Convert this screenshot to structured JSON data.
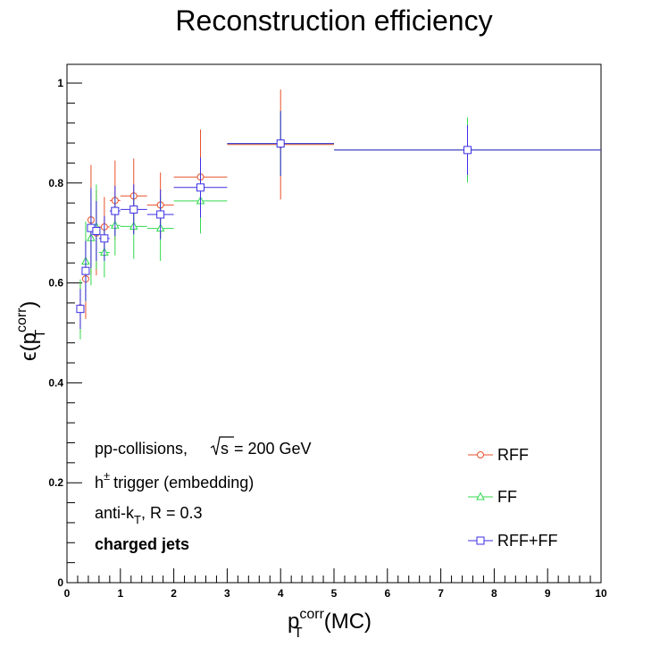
{
  "chart_data": {
    "type": "scatter",
    "title": "Reconstruction efficiency",
    "xlabel": {
      "base": "p",
      "sup": "corr",
      "sub": "T",
      "suffix": "(MC)"
    },
    "ylabel": {
      "prefix": "ϵ(p",
      "sup": "corr",
      "sub": "T",
      "suffix": ")"
    },
    "xlim": [
      0,
      10
    ],
    "ylim": [
      0,
      1.0375
    ],
    "x_ticks": [
      "0",
      "1",
      "2",
      "3",
      "4",
      "5",
      "6",
      "7",
      "8",
      "9",
      "10"
    ],
    "y_ticks": [
      "0",
      "0.2",
      "0.4",
      "0.6",
      "0.8",
      "1"
    ],
    "grid": false,
    "legend_position": "bottom-right",
    "annotations": {
      "line1_prefix": "pp-collisions,",
      "line1_sqrt_arg": "s",
      "line1_suffix": "= 200 GeV",
      "line2_prefix": "h",
      "line2_sup": "±",
      "line2_suffix": "trigger (embedding)",
      "line3_prefix": "anti-k",
      "line3_sub": "T",
      "line3_suffix": ", R = 0.3",
      "line4": "charged jets"
    },
    "series": [
      {
        "name": "RFF",
        "color": "#e8502a",
        "marker": "circle",
        "points": [
          {
            "x": 0.25,
            "y": 0.55,
            "xerr": 0.05,
            "yerr": 0.05
          },
          {
            "x": 0.35,
            "y": 0.608,
            "xerr": 0.05,
            "yerr": 0.08
          },
          {
            "x": 0.45,
            "y": 0.726,
            "xerr": 0.05,
            "yerr": 0.11
          },
          {
            "x": 0.55,
            "y": 0.7,
            "xerr": 0.05,
            "yerr": 0.085
          },
          {
            "x": 0.7,
            "y": 0.712,
            "xerr": 0.1,
            "yerr": 0.06
          },
          {
            "x": 0.9,
            "y": 0.765,
            "xerr": 0.1,
            "yerr": 0.08
          },
          {
            "x": 1.25,
            "y": 0.774,
            "xerr": 0.25,
            "yerr": 0.075
          },
          {
            "x": 1.75,
            "y": 0.756,
            "xerr": 0.25,
            "yerr": 0.065
          },
          {
            "x": 2.5,
            "y": 0.812,
            "xerr": 0.5,
            "yerr": 0.095
          },
          {
            "x": 4.0,
            "y": 0.877,
            "xerr": 1.0,
            "yerr": 0.11
          },
          {
            "x": 7.5,
            "y": 0.866,
            "xerr": 2.5,
            "yerr": 0.04
          }
        ]
      },
      {
        "name": "FF",
        "color": "#33d94e",
        "marker": "triangle",
        "points": [
          {
            "x": 0.25,
            "y": 0.547,
            "xerr": 0.05,
            "yerr": 0.06
          },
          {
            "x": 0.35,
            "y": 0.643,
            "xerr": 0.05,
            "yerr": 0.08
          },
          {
            "x": 0.45,
            "y": 0.69,
            "xerr": 0.05,
            "yerr": 0.095
          },
          {
            "x": 0.55,
            "y": 0.712,
            "xerr": 0.05,
            "yerr": 0.085
          },
          {
            "x": 0.7,
            "y": 0.661,
            "xerr": 0.1,
            "yerr": 0.05
          },
          {
            "x": 0.9,
            "y": 0.715,
            "xerr": 0.1,
            "yerr": 0.06
          },
          {
            "x": 1.25,
            "y": 0.713,
            "xerr": 0.25,
            "yerr": 0.065
          },
          {
            "x": 1.75,
            "y": 0.709,
            "xerr": 0.25,
            "yerr": 0.065
          },
          {
            "x": 2.5,
            "y": 0.764,
            "xerr": 0.5,
            "yerr": 0.065
          },
          {
            "x": 4.0,
            "y": 0.879,
            "xerr": 1.0,
            "yerr": 0.065
          },
          {
            "x": 7.5,
            "y": 0.866,
            "xerr": 2.5,
            "yerr": 0.065
          }
        ]
      },
      {
        "name": "RFF+FF",
        "color": "#3b2ee6",
        "marker": "square",
        "points": [
          {
            "x": 0.25,
            "y": 0.548,
            "xerr": 0.05,
            "yerr": 0.04
          },
          {
            "x": 0.35,
            "y": 0.624,
            "xerr": 0.05,
            "yerr": 0.06
          },
          {
            "x": 0.45,
            "y": 0.71,
            "xerr": 0.05,
            "yerr": 0.08
          },
          {
            "x": 0.55,
            "y": 0.704,
            "xerr": 0.05,
            "yerr": 0.06
          },
          {
            "x": 0.7,
            "y": 0.689,
            "xerr": 0.1,
            "yerr": 0.045
          },
          {
            "x": 0.9,
            "y": 0.744,
            "xerr": 0.1,
            "yerr": 0.05
          },
          {
            "x": 1.25,
            "y": 0.747,
            "xerr": 0.25,
            "yerr": 0.05
          },
          {
            "x": 1.75,
            "y": 0.737,
            "xerr": 0.25,
            "yerr": 0.05
          },
          {
            "x": 2.5,
            "y": 0.791,
            "xerr": 0.5,
            "yerr": 0.06
          },
          {
            "x": 4.0,
            "y": 0.879,
            "xerr": 1.0,
            "yerr": 0.065
          },
          {
            "x": 7.5,
            "y": 0.866,
            "xerr": 2.5,
            "yerr": 0.05
          }
        ]
      }
    ]
  }
}
